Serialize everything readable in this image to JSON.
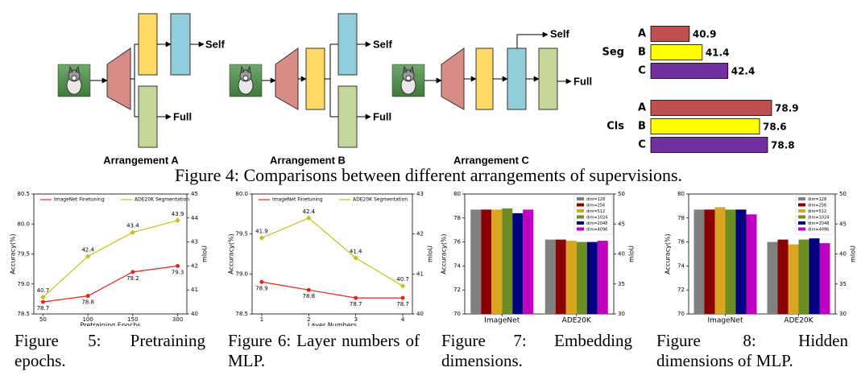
{
  "diagram": {
    "arrangements": [
      {
        "title": "Arrangement A",
        "self": "Self",
        "full": "Full"
      },
      {
        "title": "Arrangement B",
        "self": "Self",
        "full": "Full"
      },
      {
        "title": "Arrangement C",
        "self": "Self",
        "full": "Full"
      }
    ]
  },
  "captions": [
    "Figure 4: Comparisons between different arrangements of supervisions.",
    "Figure 5: Pretraining epochs.",
    "Figure 6: Layer numbers of MLP.",
    "Figure 7: Embedding dimensions.",
    "Figure 8: Hidden dimensions of MLP."
  ],
  "chart_data": [
    {
      "type": "hbar",
      "categories": [
        "Seg",
        "Cls"
      ],
      "xlim": [
        [
          39.4,
          44.1
        ],
        [
          75.9,
          78.9
        ]
      ],
      "series": [
        {
          "name": "A",
          "color": "#c0504d",
          "values": [
            40.9,
            78.9
          ]
        },
        {
          "name": "B",
          "color": "#ffff00",
          "values": [
            41.4,
            78.6
          ]
        },
        {
          "name": "C",
          "color": "#7030a0",
          "values": [
            42.4,
            78.8
          ]
        }
      ]
    },
    {
      "type": "line",
      "xlabel": "Pretraining Epochs",
      "ylabel": "Accuracy(%)",
      "y2label": "mIoU",
      "categories": [
        "50",
        "100",
        "150",
        "300"
      ],
      "ylim": [
        78.5,
        80.5
      ],
      "yticks": [
        78.5,
        {
          "value": 79,
          "label": "79.0"
        },
        79.5,
        {
          "value": 80,
          "label": "80.0"
        },
        80.5
      ],
      "y2lim": [
        40,
        45
      ],
      "y2ticks": [
        40,
        41,
        42,
        43,
        44,
        45
      ],
      "series": [
        {
          "name": "ImageNet Finetuning",
          "color": "#e8241f",
          "values": [
            78.7,
            78.8,
            79.2,
            79.3
          ]
        },
        {
          "name": "ADE20K Segmentation",
          "color": "#c2c21a",
          "axis": "y2",
          "values": [
            40.7,
            42.4,
            43.4,
            43.9
          ]
        }
      ]
    },
    {
      "type": "line",
      "xlabel": "Layer Numbers",
      "ylabel": "Accuracy(%)",
      "y2label": "mIoU",
      "categories": [
        "1",
        "2",
        "3",
        "4"
      ],
      "ylim": [
        78.5,
        80.0
      ],
      "yticks": [
        78.5,
        {
          "value": 79,
          "label": "79.0"
        },
        79.5,
        {
          "value": 80,
          "label": "80.0"
        }
      ],
      "y2lim": [
        40,
        43
      ],
      "y2ticks": [
        40,
        41,
        42,
        43
      ],
      "series": [
        {
          "name": "ImageNet Finetuning",
          "color": "#e8241f",
          "values": [
            78.9,
            78.8,
            78.7,
            78.7
          ]
        },
        {
          "name": "ADE20K Segmentation",
          "color": "#c2c21a",
          "axis": "y2",
          "values": [
            41.9,
            42.4,
            41.4,
            40.7
          ]
        }
      ]
    },
    {
      "type": "bar",
      "ylabel": "Accuracy(%)",
      "y2label": "mIoU",
      "categories": [
        "ImageNet",
        "ADE20K"
      ],
      "category_axes": [
        "y",
        "y2"
      ],
      "ylim": [
        70,
        80
      ],
      "yticks": [
        70,
        72,
        74,
        76,
        78,
        80
      ],
      "y2lim": [
        30,
        50
      ],
      "y2ticks": [
        30,
        35,
        40,
        45,
        50
      ],
      "series": [
        {
          "name": "dim=128",
          "color": "#808080",
          "values": [
            78.7,
            42.4
          ]
        },
        {
          "name": "dim=256",
          "color": "#8b0000",
          "values": [
            78.7,
            42.4
          ]
        },
        {
          "name": "dim=512",
          "color": "#daa520",
          "values": [
            78.7,
            42.2
          ]
        },
        {
          "name": "dim=1024",
          "color": "#6b8e23",
          "values": [
            78.8,
            42.0
          ]
        },
        {
          "name": "dim=2048",
          "color": "#000080",
          "values": [
            78.4,
            42.0
          ]
        },
        {
          "name": "dim=4096",
          "color": "#c000c0",
          "values": [
            78.7,
            42.2
          ]
        }
      ]
    },
    {
      "type": "bar",
      "ylabel": "Accuracy(%)",
      "y2label": "mIoU",
      "categories": [
        "ImageNet",
        "ADE20K"
      ],
      "category_axes": [
        "y",
        "y2"
      ],
      "ylim": [
        70,
        80
      ],
      "yticks": [
        70,
        72,
        74,
        76,
        78,
        80
      ],
      "y2lim": [
        30,
        50
      ],
      "y2ticks": [
        30,
        35,
        40,
        45,
        50
      ],
      "series": [
        {
          "name": "dim=128",
          "color": "#808080",
          "values": [
            78.7,
            42.0
          ]
        },
        {
          "name": "dim=256",
          "color": "#8b0000",
          "values": [
            78.7,
            42.4
          ]
        },
        {
          "name": "dim=512",
          "color": "#daa520",
          "values": [
            78.9,
            41.6
          ]
        },
        {
          "name": "dim=1024",
          "color": "#6b8e23",
          "values": [
            78.7,
            42.4
          ]
        },
        {
          "name": "dim=2048",
          "color": "#000080",
          "values": [
            78.7,
            42.6
          ]
        },
        {
          "name": "dim=4096",
          "color": "#c000c0",
          "values": [
            78.3,
            41.8
          ]
        }
      ]
    }
  ]
}
